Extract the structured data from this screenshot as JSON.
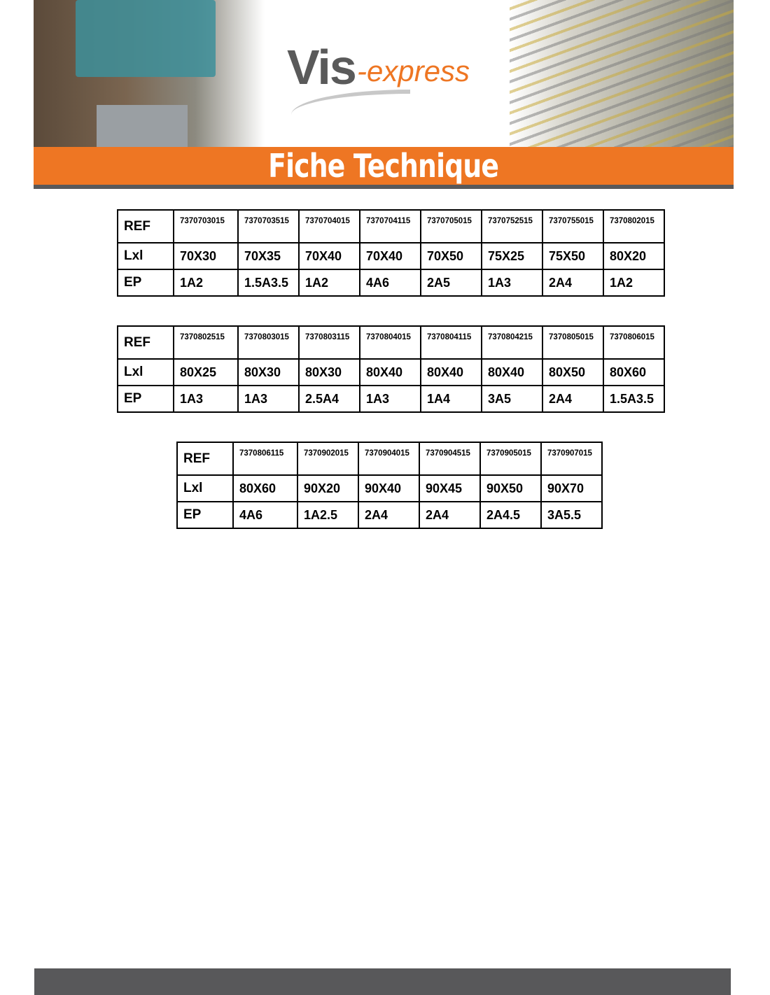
{
  "header": {
    "logo_text": "Vis-express",
    "title": "Fiche Technique",
    "colors": {
      "accent": "#ee7623",
      "gray": "#58585a"
    }
  },
  "row_labels": {
    "ref": "REF",
    "size": "Lxl",
    "ep": "EP"
  },
  "tables": [
    {
      "refs": [
        "7370703015",
        "7370703515",
        "7370704015",
        "7370704115",
        "7370705015",
        "7370752515",
        "7370755015",
        "7370802015"
      ],
      "sizes": [
        "70X30",
        "70X35",
        "70X40",
        "70X40",
        "70X50",
        "75X25",
        "75X50",
        "80X20"
      ],
      "ep": [
        "1A2",
        "1.5A3.5",
        "1A2",
        "4A6",
        "2A5",
        "1A3",
        "2A4",
        "1A2"
      ]
    },
    {
      "refs": [
        "7370802515",
        "7370803015",
        "7370803115",
        "7370804015",
        "7370804115",
        "7370804215",
        "7370805015",
        "7370806015"
      ],
      "sizes": [
        "80X25",
        "80X30",
        "80X30",
        "80X40",
        "80X40",
        "80X40",
        "80X50",
        "80X60"
      ],
      "ep": [
        "1A3",
        "1A3",
        "2.5A4",
        "1A3",
        "1A4",
        "3A5",
        "2A4",
        "1.5A3.5"
      ]
    },
    {
      "refs": [
        "7370806115",
        "7370902015",
        "7370904015",
        "7370904515",
        "7370905015",
        "7370907015"
      ],
      "sizes": [
        "80X60",
        "90X20",
        "90X40",
        "90X45",
        "90X50",
        "90X70"
      ],
      "ep": [
        "4A6",
        "1A2.5",
        "2A4",
        "2A4",
        "2A4.5",
        "3A5.5"
      ]
    }
  ]
}
